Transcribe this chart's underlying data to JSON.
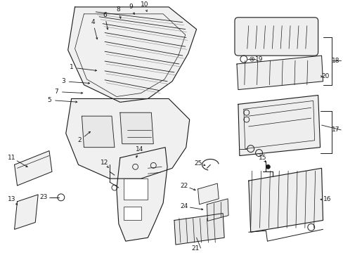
{
  "bg_color": "#ffffff",
  "fig_width": 4.89,
  "fig_height": 3.6,
  "dpi": 100,
  "line_color": "#1a1a1a",
  "label_fontsize": 6.5
}
